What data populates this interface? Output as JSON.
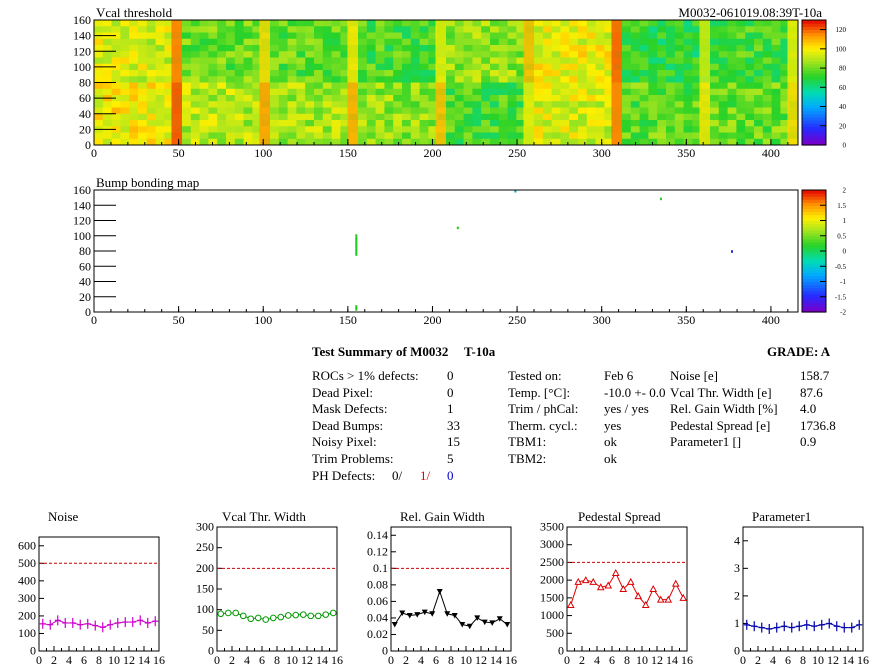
{
  "header": {
    "map1_title": "Vcal threshold",
    "module_label": "M0032-061019.08:39T-10a",
    "map2_title": "Bump bonding map"
  },
  "maps": {
    "x_ticks": [
      "0",
      "50",
      "100",
      "150",
      "200",
      "250",
      "300",
      "350",
      "400"
    ],
    "y_ticks": [
      "0",
      "20",
      "40",
      "60",
      "80",
      "100",
      "120",
      "140",
      "160"
    ],
    "x_range": [
      0,
      416
    ],
    "y_range": [
      0,
      160
    ],
    "map1_scale_ticks": [
      "0",
      "20",
      "40",
      "60",
      "80",
      "100",
      "120"
    ],
    "map2_scale_ticks": [
      "-2",
      "-1.5",
      "-1",
      "-0.5",
      "0",
      "0.5",
      "1",
      "1.5",
      "2"
    ]
  },
  "summary": {
    "title": "Test Summary of M0032",
    "temp_tag": "T-10a",
    "grade": "GRADE:  A",
    "col1": [
      {
        "label": "ROCs > 1% defects:",
        "value": "0"
      },
      {
        "label": "Dead Pixel:",
        "value": "0"
      },
      {
        "label": "Mask Defects:",
        "value": "1"
      },
      {
        "label": "Dead Bumps:",
        "value": "33"
      },
      {
        "label": "Noisy Pixel:",
        "value": "15"
      },
      {
        "label": "Trim Problems:",
        "value": "5"
      }
    ],
    "ph_label": "PH Defects:",
    "ph_values": [
      "0/",
      "1/",
      "0"
    ],
    "ph_colors": [
      "#000000",
      "#e00000",
      "#0000cc"
    ],
    "col2": [
      {
        "label": "Tested on:",
        "value": "Feb 6"
      },
      {
        "label": "Temp. [°C]:",
        "value": "-10.0 +- 0.0"
      },
      {
        "label": "Trim / phCal:",
        "value": "yes / yes"
      },
      {
        "label": "Therm. cycl.:",
        "value": "yes"
      },
      {
        "label": "TBM1:",
        "value": "ok"
      },
      {
        "label": "TBM2:",
        "value": "ok"
      }
    ],
    "col3": [
      {
        "label": "Noise [e]",
        "value": "158.7"
      },
      {
        "label": "Vcal Thr. Width [e]",
        "value": "87.6"
      },
      {
        "label": "Rel. Gain Width [%]",
        "value": "4.0"
      },
      {
        "label": "Pedestal Spread [e]",
        "value": "1736.8"
      },
      {
        "label": "Parameter1 []",
        "value": "0.9"
      }
    ]
  },
  "chart_data": [
    {
      "type": "heatmap",
      "title": "Vcal threshold",
      "xlim": [
        0,
        416
      ],
      "ylim": [
        0,
        160
      ],
      "x_ticks": [
        0,
        50,
        100,
        150,
        200,
        250,
        300,
        350,
        400
      ],
      "y_ticks": [
        0,
        20,
        40,
        60,
        80,
        100,
        120,
        140,
        160
      ],
      "z_range": [
        0,
        130
      ],
      "z_ticks": [
        0,
        20,
        40,
        60,
        80,
        100,
        120
      ],
      "roc_mean_values_top_row": [
        95,
        80,
        78,
        75,
        85,
        98,
        70,
        75
      ],
      "roc_mean_values_bottom_row": [
        100,
        90,
        88,
        85,
        75,
        95,
        78,
        80
      ],
      "colormap": "rainbow"
    },
    {
      "type": "heatmap",
      "title": "Bump bonding map",
      "xlim": [
        0,
        416
      ],
      "ylim": [
        0,
        160
      ],
      "x_ticks": [
        0,
        50,
        100,
        150,
        200,
        250,
        300,
        350,
        400
      ],
      "y_ticks": [
        0,
        20,
        40,
        60,
        80,
        100,
        120,
        140,
        160
      ],
      "z_range": [
        -2,
        2
      ],
      "z_ticks": [
        -2,
        -1.5,
        -1,
        -0.5,
        0,
        0.5,
        1,
        1.5,
        2
      ],
      "defect_pixels": [
        {
          "x": 155,
          "y": 75
        },
        {
          "x": 155,
          "y": 77
        },
        {
          "x": 155,
          "y": 79
        },
        {
          "x": 155,
          "y": 81
        },
        {
          "x": 155,
          "y": 83
        },
        {
          "x": 155,
          "y": 85
        },
        {
          "x": 155,
          "y": 87
        },
        {
          "x": 155,
          "y": 89
        },
        {
          "x": 155,
          "y": 91
        },
        {
          "x": 155,
          "y": 93
        },
        {
          "x": 155,
          "y": 95
        },
        {
          "x": 155,
          "y": 97
        },
        {
          "x": 155,
          "y": 100
        },
        {
          "x": 155,
          "y": 3
        },
        {
          "x": 155,
          "y": 5
        },
        {
          "x": 155,
          "y": 7
        },
        {
          "x": 249,
          "y": 158
        },
        {
          "x": 335,
          "y": 148
        },
        {
          "x": 377,
          "y": 79
        },
        {
          "x": 215,
          "y": 110
        }
      ]
    },
    {
      "type": "line",
      "title": "Noise",
      "x": [
        0,
        1,
        2,
        3,
        4,
        5,
        6,
        7,
        8,
        9,
        10,
        11,
        12,
        13,
        14,
        15
      ],
      "values": [
        155,
        150,
        175,
        160,
        160,
        150,
        155,
        145,
        135,
        150,
        160,
        165,
        165,
        175,
        160,
        170
      ],
      "ylim": [
        0,
        650
      ],
      "y_ticks": [
        0,
        100,
        200,
        300,
        400,
        500,
        600
      ],
      "threshold": 500,
      "color": "#cc00cc",
      "marker": "cross"
    },
    {
      "type": "line",
      "title": "Vcal Thr. Width",
      "x": [
        0,
        1,
        2,
        3,
        4,
        5,
        6,
        7,
        8,
        9,
        10,
        11,
        12,
        13,
        14,
        15
      ],
      "values": [
        90,
        92,
        92,
        85,
        78,
        80,
        76,
        80,
        82,
        86,
        87,
        88,
        85,
        85,
        88,
        92
      ],
      "ylim": [
        0,
        300
      ],
      "y_ticks": [
        0,
        50,
        100,
        150,
        200,
        250,
        300
      ],
      "threshold": 200,
      "color": "#009900",
      "marker": "circle"
    },
    {
      "type": "line",
      "title": "Rel. Gain Width",
      "x": [
        0,
        1,
        2,
        3,
        4,
        5,
        6,
        7,
        8,
        9,
        10,
        11,
        12,
        13,
        14,
        15
      ],
      "values": [
        0.032,
        0.046,
        0.043,
        0.044,
        0.047,
        0.045,
        0.072,
        0.045,
        0.043,
        0.032,
        0.03,
        0.04,
        0.035,
        0.034,
        0.039,
        0.032
      ],
      "ylim": [
        0,
        0.15
      ],
      "y_ticks": [
        0,
        0.02,
        0.04,
        0.06,
        0.08,
        0.1,
        0.12,
        0.14
      ],
      "threshold": 0.1,
      "color": "#000000",
      "marker": "triangle-down"
    },
    {
      "type": "line",
      "title": "Pedestal Spread",
      "x": [
        0,
        1,
        2,
        3,
        4,
        5,
        6,
        7,
        8,
        9,
        10,
        11,
        12,
        13,
        14,
        15
      ],
      "values": [
        1300,
        1950,
        2000,
        1950,
        1800,
        1850,
        2200,
        1750,
        1950,
        1550,
        1300,
        1750,
        1450,
        1450,
        1900,
        1500
      ],
      "ylim": [
        0,
        3500
      ],
      "y_ticks": [
        0,
        500,
        1000,
        1500,
        2000,
        2500,
        3000,
        3500
      ],
      "threshold": 2500,
      "color": "#dd0000",
      "marker": "triangle-up"
    },
    {
      "type": "line",
      "title": "Parameter1",
      "x": [
        0,
        1,
        2,
        3,
        4,
        5,
        6,
        7,
        8,
        9,
        10,
        11,
        12,
        13,
        14,
        15
      ],
      "values": [
        0.95,
        0.9,
        0.85,
        0.8,
        0.85,
        0.9,
        0.85,
        0.9,
        0.95,
        0.9,
        0.95,
        1.0,
        0.9,
        0.85,
        0.85,
        0.95
      ],
      "ylim": [
        0,
        4.5
      ],
      "y_ticks": [
        0,
        1,
        2,
        3,
        4
      ],
      "color": "#0000aa",
      "marker": "cross"
    }
  ],
  "small_x_ticks": [
    "0",
    "2",
    "4",
    "6",
    "8",
    "10",
    "12",
    "14",
    "16"
  ]
}
